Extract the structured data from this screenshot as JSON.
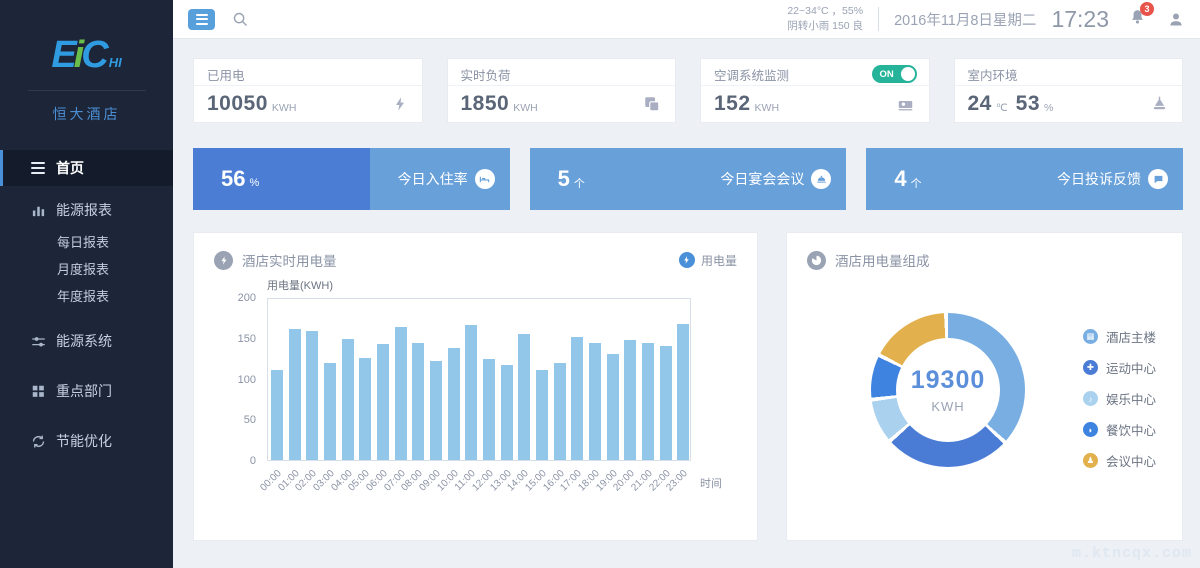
{
  "brand": {
    "logo_part1": "E",
    "logo_part2": "i",
    "logo_part3": "C",
    "logo_suffix": "HI",
    "hotel_name": "恒大酒店"
  },
  "topbar": {
    "weather_line1": "22~34°C ，55%",
    "weather_line2": "阴转小雨 150 良",
    "date": "2016年11月8日星期二",
    "time": "17:23",
    "notification_count": "3"
  },
  "sidebar": {
    "items": [
      {
        "label": "首页"
      },
      {
        "label": "能源报表"
      },
      {
        "label": "每日报表"
      },
      {
        "label": "月度报表"
      },
      {
        "label": "年度报表"
      },
      {
        "label": "能源系统"
      },
      {
        "label": "重点部门"
      },
      {
        "label": "节能优化"
      }
    ]
  },
  "stat_cards": [
    {
      "title": "已用电",
      "value": "10050",
      "unit": "KWH",
      "icon": "lightning-icon"
    },
    {
      "title": "实时负荷",
      "value": "1850",
      "unit": "KWH",
      "icon": "load-icon"
    },
    {
      "title": "空调系统监测",
      "value": "152",
      "unit": "KWH",
      "icon": "ac-monitor-icon",
      "toggle_label": "ON"
    },
    {
      "title": "室内环境",
      "value": "24",
      "unit": "℃",
      "value2": "53",
      "unit2": "%",
      "icon": "indoor-env-icon"
    }
  ],
  "banners": [
    {
      "value": "56",
      "unit": "%",
      "label": "今日入住率",
      "icon": "bed-icon",
      "fill_percent": 56
    },
    {
      "value": "5",
      "unit": "个",
      "label": "今日宴会会议",
      "icon": "banquet-icon"
    },
    {
      "value": "4",
      "unit": "个",
      "label": "今日投诉反馈",
      "icon": "feedback-icon"
    }
  ],
  "colors": {
    "sidebar_bg": "#1d2638",
    "accent_blue": "#58a0dc",
    "banner_dark": "#4a7dd3",
    "banner_light": "#68a0da",
    "toggle_green": "#25b49a",
    "bar_fill": "#92c7ea",
    "badge_red": "#e8534a"
  },
  "watermark": "m.ktncqx.com",
  "chart_data": [
    {
      "type": "bar",
      "title": "酒店实时用电量",
      "legend": [
        "用电量"
      ],
      "legend_position": "top-right",
      "ylabel": "用电量(KWH)",
      "xlabel": "时间",
      "ylim": [
        0,
        200
      ],
      "yticks": [
        0,
        50,
        100,
        150,
        200
      ],
      "grid": false,
      "bar_color": "#92c7ea",
      "categories": [
        "00:00",
        "01:00",
        "02:00",
        "03:00",
        "04:00",
        "05:00",
        "06:00",
        "07:00",
        "08:00",
        "09:00",
        "10:00",
        "11:00",
        "12:00",
        "13:00",
        "14:00",
        "15:00",
        "16:00",
        "17:00",
        "18:00",
        "19:00",
        "20:00",
        "21:00",
        "22:00",
        "23:00"
      ],
      "values": [
        110,
        161,
        158,
        119,
        148,
        125,
        142,
        163,
        144,
        121,
        137,
        166,
        124,
        117,
        155,
        111,
        119,
        151,
        144,
        130,
        147,
        143,
        140,
        167
      ]
    },
    {
      "type": "pie",
      "title": "酒店用电量组成",
      "center_value": "19300",
      "center_unit": "KWH",
      "legend_position": "right",
      "segments": [
        {
          "label": "酒店主楼",
          "percent": 38,
          "color": "#79aee3",
          "icon": "building-icon"
        },
        {
          "label": "运动中心",
          "percent": 27,
          "color": "#4a7cd6",
          "icon": "sports-icon"
        },
        {
          "label": "娱乐中心",
          "percent": 9,
          "color": "#aad2ee",
          "icon": "entertainment-icon"
        },
        {
          "label": "餐饮中心",
          "percent": 9,
          "color": "#3f83e0",
          "icon": "dining-icon"
        },
        {
          "label": "会议中心",
          "percent": 17,
          "color": "#e2b14d",
          "icon": "meeting-icon"
        }
      ]
    }
  ]
}
